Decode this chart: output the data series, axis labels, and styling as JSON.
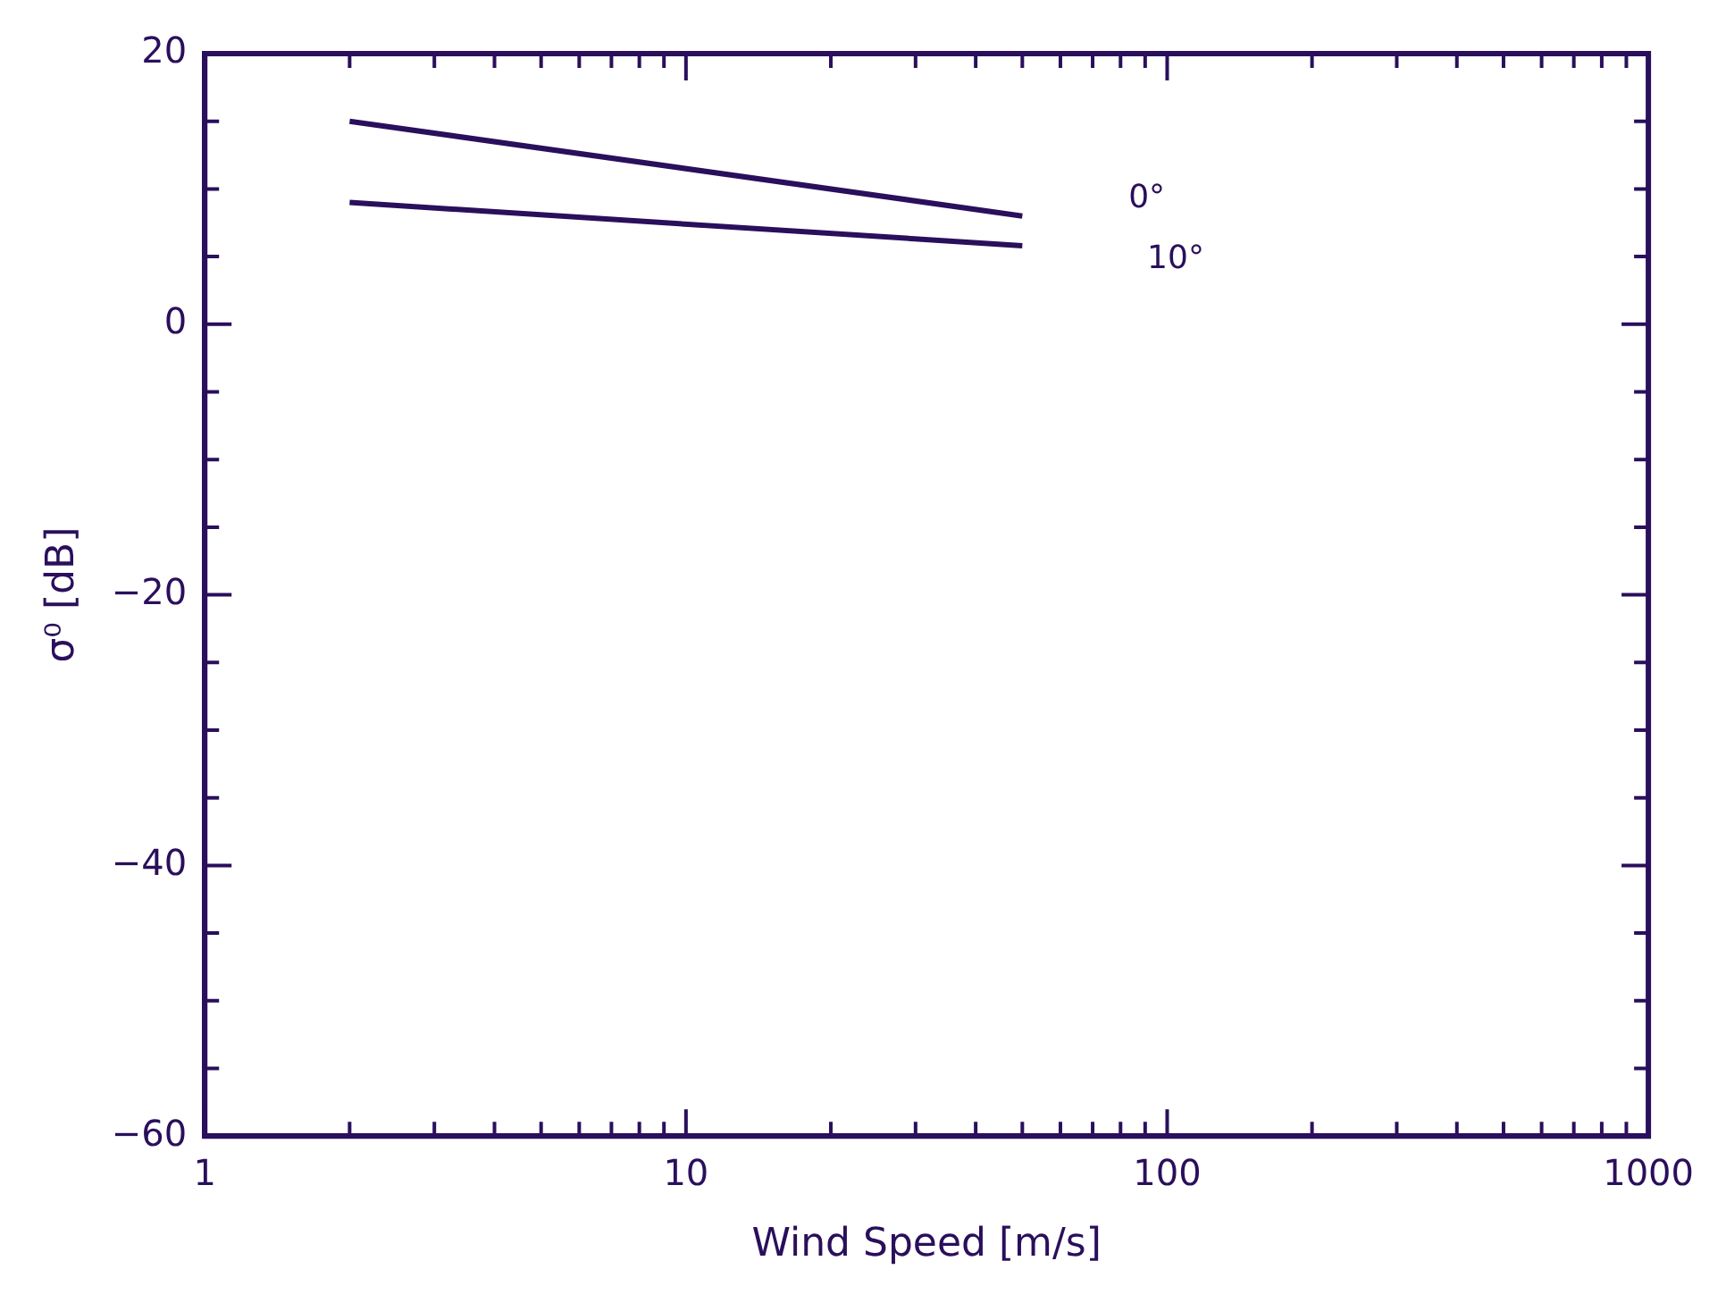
{
  "chart_data": {
    "type": "line",
    "xlabel": "Wind Speed [m/s]",
    "ylabel": "σ⁰ [dB]",
    "log": "x",
    "grid": false,
    "legend": false,
    "marker": "none",
    "line_style": "solid",
    "x": [
      2,
      50
    ],
    "xlim": [
      1,
      1000
    ],
    "ylim": [
      -60,
      20
    ],
    "xticks": [
      1,
      {
        "value": 2,
        "label": null
      },
      {
        "value": 3,
        "label": null
      },
      {
        "value": 4,
        "label": null
      },
      {
        "value": 5,
        "label": null
      },
      {
        "value": 6,
        "label": null
      },
      {
        "value": 7,
        "label": null
      },
      {
        "value": 8,
        "label": null
      },
      {
        "value": 9,
        "label": null
      },
      10,
      {
        "value": 20,
        "label": null
      },
      {
        "value": 30,
        "label": null
      },
      {
        "value": 40,
        "label": null
      },
      {
        "value": 50,
        "label": null
      },
      {
        "value": 60,
        "label": null
      },
      {
        "value": 70,
        "label": null
      },
      {
        "value": 80,
        "label": null
      },
      {
        "value": 90,
        "label": null
      },
      100,
      {
        "value": 200,
        "label": null
      },
      {
        "value": 300,
        "label": null
      },
      {
        "value": 400,
        "label": null
      },
      {
        "value": 500,
        "label": null
      },
      {
        "value": 600,
        "label": null
      },
      {
        "value": 700,
        "label": null
      },
      {
        "value": 800,
        "label": null
      },
      {
        "value": 900,
        "label": null
      },
      1000
    ],
    "yticks": [
      {
        "value": -60,
        "label": "−60"
      },
      {
        "value": -55,
        "label": null
      },
      {
        "value": -50,
        "label": null
      },
      {
        "value": -45,
        "label": null
      },
      {
        "value": -40,
        "label": "−40"
      },
      {
        "value": -35,
        "label": null
      },
      {
        "value": -30,
        "label": null
      },
      {
        "value": -25,
        "label": null
      },
      {
        "value": -20,
        "label": "−20"
      },
      {
        "value": -15,
        "label": null
      },
      {
        "value": -10,
        "label": null
      },
      {
        "value": -5,
        "label": null
      },
      0,
      {
        "value": 5,
        "label": null
      },
      {
        "value": 10,
        "label": null
      },
      {
        "value": 15,
        "label": null
      },
      20
    ],
    "series": [
      {
        "name": "0°",
        "color": "#2a0f5c",
        "values": [
          15,
          8
        ]
      },
      {
        "name": "10°",
        "color": "#2a0f5c",
        "values": [
          9,
          5.8
        ]
      }
    ]
  }
}
